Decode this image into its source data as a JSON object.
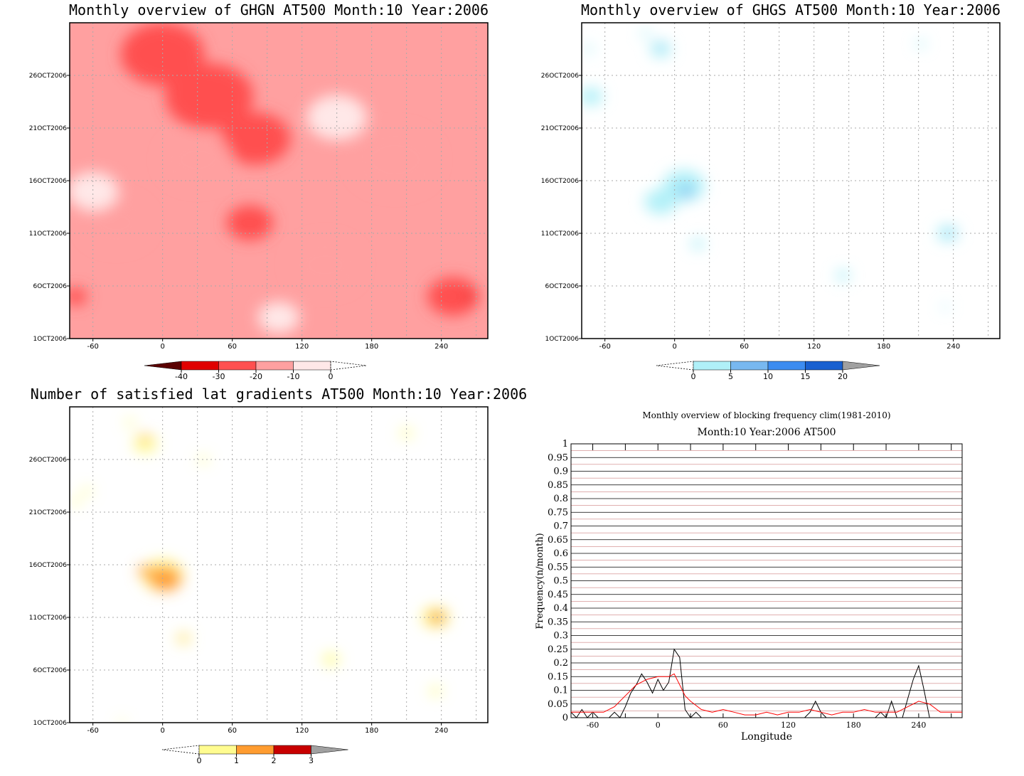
{
  "chart_data": [
    {
      "type": "heatmap",
      "title": "Monthly overview of GHGN AT500 Month:10 Year:2006",
      "x_ticks": [
        "-60",
        "0",
        "60",
        "120",
        "180",
        "240"
      ],
      "y_ticks": [
        "1OCT2006",
        "6OCT2006",
        "11OCT2006",
        "16OCT2006",
        "21OCT2006",
        "26OCT2006"
      ],
      "xlim": [
        -80,
        280
      ],
      "colorbar": {
        "labels": [
          "-40",
          "-30",
          "-20",
          "-10",
          "0"
        ],
        "colors": [
          "#5a0000",
          "#e00000",
          "#ff5050",
          "#ffa0a0",
          "#ffe8e8"
        ]
      },
      "palette": [
        "#ffe8e8",
        "#ffa0a0",
        "#ff5050",
        "#e00000"
      ],
      "blobs": [
        {
          "x": 0,
          "y": 28,
          "r": 36,
          "level": 2
        },
        {
          "x": 40,
          "y": 24,
          "r": 38,
          "level": 2
        },
        {
          "x": 80,
          "y": 20,
          "r": 30,
          "level": 2
        },
        {
          "x": 75,
          "y": 12,
          "r": 20,
          "level": 2
        },
        {
          "x": 30,
          "y": 18,
          "r": 30,
          "level": 1
        },
        {
          "x": -40,
          "y": 12,
          "r": 28,
          "level": 1
        },
        {
          "x": 140,
          "y": 8,
          "r": 30,
          "level": 1
        },
        {
          "x": 200,
          "y": 18,
          "r": 36,
          "level": 1
        },
        {
          "x": 250,
          "y": 5,
          "r": 22,
          "level": 2
        },
        {
          "x": -75,
          "y": 5,
          "r": 10,
          "level": 2
        },
        {
          "x": 150,
          "y": 22,
          "r": 26,
          "level": 0
        },
        {
          "x": -60,
          "y": 15,
          "r": 22,
          "level": 0
        },
        {
          "x": 100,
          "y": 3,
          "r": 18,
          "level": 0
        },
        {
          "x": 265,
          "y": 5,
          "r": 4,
          "level": 3
        }
      ]
    },
    {
      "type": "heatmap",
      "title": "Monthly overview of GHGS AT500 Month:10 Year:2006",
      "x_ticks": [
        "-60",
        "0",
        "60",
        "120",
        "180",
        "240"
      ],
      "y_ticks": [
        "1OCT2006",
        "6OCT2006",
        "11OCT2006",
        "16OCT2006",
        "21OCT2006",
        "26OCT2006"
      ],
      "xlim": [
        -80,
        280
      ],
      "colorbar": {
        "labels": [
          "0",
          "5",
          "10",
          "15",
          "20"
        ],
        "colors": [
          "#b0f0f8",
          "#78b8f0",
          "#3c8cf0",
          "#1860d0",
          "#a0a0a0"
        ]
      },
      "palette": [
        "#b0f0f8",
        "#78b8f0"
      ],
      "blobs": [
        {
          "x": 8,
          "y": 15.5,
          "r": 18,
          "level": 0
        },
        {
          "x": -12,
          "y": 14,
          "r": 14,
          "level": 0
        },
        {
          "x": 10,
          "y": 15,
          "r": 6,
          "level": 1
        },
        {
          "x": -12,
          "y": 28.5,
          "r": 9,
          "level": 0
        },
        {
          "x": -12,
          "y": 28.7,
          "r": 3,
          "level": 1
        },
        {
          "x": -72,
          "y": 24,
          "r": 10,
          "level": 0
        },
        {
          "x": 20,
          "y": 10,
          "r": 6,
          "level": 0
        },
        {
          "x": 145,
          "y": 7,
          "r": 6,
          "level": 0
        },
        {
          "x": 235,
          "y": 11,
          "r": 9,
          "level": 0
        },
        {
          "x": 237,
          "y": 11,
          "r": 3,
          "level": 1
        },
        {
          "x": 233,
          "y": 4,
          "r": 3,
          "level": 0
        },
        {
          "x": -74,
          "y": 28.5,
          "r": 4,
          "level": 0
        },
        {
          "x": -25,
          "y": 30,
          "r": 4,
          "level": 0
        },
        {
          "x": 212,
          "y": 29,
          "r": 4,
          "level": 0
        }
      ]
    },
    {
      "type": "heatmap",
      "title": "Number of satisfied lat gradients AT500 Month:10 Year:2006",
      "x_ticks": [
        "-60",
        "0",
        "60",
        "120",
        "180",
        "240"
      ],
      "y_ticks": [
        "1OCT2006",
        "6OCT2006",
        "11OCT2006",
        "16OCT2006",
        "21OCT2006",
        "26OCT2006"
      ],
      "xlim": [
        -80,
        280
      ],
      "colorbar": {
        "labels": [
          "0",
          "1",
          "2",
          "3"
        ],
        "colors": [
          "#fffc90",
          "#ff9c30",
          "#c80000",
          "#a0a0a0"
        ]
      },
      "palette": [
        "#fffc90",
        "#ff9c30",
        "#c80000"
      ],
      "blobs": [
        {
          "x": 0,
          "y": 15,
          "r": 18,
          "level": 0
        },
        {
          "x": -15,
          "y": 27.5,
          "r": 10,
          "level": 0
        },
        {
          "x": -15,
          "y": 28,
          "r": 4,
          "level": 1
        },
        {
          "x": 2,
          "y": 14.7,
          "r": 14,
          "level": 1
        },
        {
          "x": -15,
          "y": 15.4,
          "r": 6,
          "level": 1
        },
        {
          "x": 18,
          "y": 9,
          "r": 6,
          "level": 0
        },
        {
          "x": 18,
          "y": 9,
          "r": 3,
          "level": 1
        },
        {
          "x": 235,
          "y": 11,
          "r": 12,
          "level": 0
        },
        {
          "x": 236,
          "y": 11,
          "r": 7,
          "level": 1
        },
        {
          "x": 238,
          "y": 11,
          "r": 3,
          "level": 2
        },
        {
          "x": -75,
          "y": 22,
          "r": 4,
          "level": 0
        },
        {
          "x": -65,
          "y": 23,
          "r": 4,
          "level": 0
        },
        {
          "x": 35,
          "y": 26,
          "r": 4,
          "level": 0
        },
        {
          "x": -28,
          "y": 29.5,
          "r": 4,
          "level": 0
        },
        {
          "x": 145,
          "y": 7,
          "r": 7,
          "level": 0
        },
        {
          "x": 210,
          "y": 28.5,
          "r": 5,
          "level": 0
        },
        {
          "x": 235,
          "y": 4,
          "r": 5,
          "level": 0
        },
        {
          "x": -35,
          "y": 1,
          "r": 3,
          "level": 0
        }
      ]
    },
    {
      "type": "line",
      "title": "Monthly overview of blocking frequency clim(1981-2010)",
      "subtitle": "Month:10 Year:2006  AT500",
      "xlabel": "Longitude",
      "ylabel": "Frequency(n/month)",
      "xlim": [
        -80,
        280
      ],
      "ylim": [
        0,
        1
      ],
      "x_ticks": [
        "-60",
        "0",
        "60",
        "120",
        "180",
        "240"
      ],
      "y_ticks": [
        "0",
        "0.05",
        "0.1",
        "0.15",
        "0.2",
        "0.25",
        "0.3",
        "0.35",
        "0.4",
        "0.45",
        "0.5",
        "0.55",
        "0.6",
        "0.65",
        "0.7",
        "0.75",
        "0.8",
        "0.85",
        "0.9",
        "0.95",
        "1"
      ],
      "series": [
        {
          "color": "#000000",
          "x": [
            -80,
            -75,
            -70,
            -65,
            -60,
            -55,
            -50,
            -45,
            -40,
            -35,
            -30,
            -25,
            -20,
            -15,
            -10,
            -5,
            0,
            5,
            10,
            15,
            20,
            25,
            30,
            35,
            40,
            45,
            60,
            80,
            100,
            120,
            135,
            140,
            145,
            150,
            155,
            170,
            185,
            200,
            205,
            210,
            215,
            220,
            225,
            230,
            235,
            240,
            245,
            250,
            260,
            280
          ],
          "y": [
            0.02,
            0.0,
            0.03,
            0.0,
            0.02,
            0.0,
            0.0,
            0.0,
            0.02,
            0.0,
            0.04,
            0.09,
            0.12,
            0.16,
            0.13,
            0.09,
            0.14,
            0.1,
            0.13,
            0.25,
            0.22,
            0.03,
            0.0,
            0.02,
            0.0,
            0.0,
            0.0,
            0.0,
            0.0,
            0.0,
            0.0,
            0.02,
            0.06,
            0.02,
            0.0,
            0.0,
            0.0,
            0.0,
            0.02,
            0.0,
            0.06,
            0.0,
            0.0,
            0.07,
            0.14,
            0.19,
            0.1,
            0.0,
            0.0,
            0.0
          ]
        },
        {
          "color": "#ff0000",
          "x": [
            -80,
            -70,
            -60,
            -50,
            -40,
            -30,
            -20,
            -10,
            0,
            10,
            15,
            20,
            25,
            30,
            40,
            50,
            60,
            70,
            80,
            90,
            100,
            110,
            120,
            130,
            140,
            150,
            160,
            170,
            180,
            190,
            200,
            210,
            220,
            230,
            240,
            250,
            260,
            270,
            280
          ],
          "y": [
            0.02,
            0.02,
            0.02,
            0.02,
            0.04,
            0.08,
            0.12,
            0.14,
            0.15,
            0.15,
            0.16,
            0.12,
            0.08,
            0.06,
            0.03,
            0.02,
            0.03,
            0.02,
            0.01,
            0.01,
            0.02,
            0.01,
            0.02,
            0.02,
            0.03,
            0.02,
            0.01,
            0.02,
            0.02,
            0.03,
            0.02,
            0.02,
            0.02,
            0.04,
            0.06,
            0.05,
            0.02,
            0.02,
            0.02
          ]
        }
      ]
    }
  ]
}
